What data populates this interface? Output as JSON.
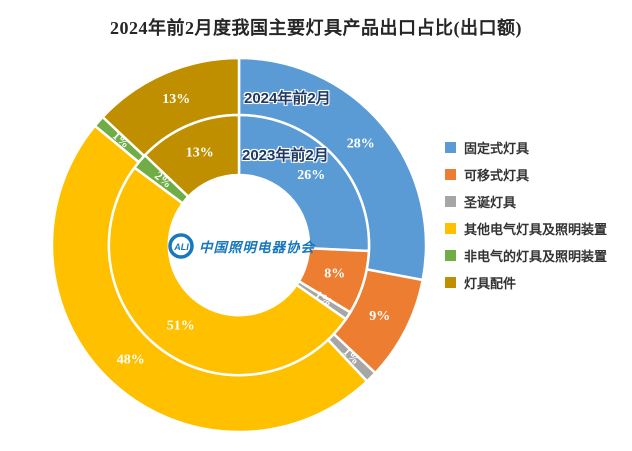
{
  "title": "2024年前2月度我国主要灯具产品出口占比(出口额)",
  "logo": {
    "acronym": "ALI",
    "name": "中国照明电器协会"
  },
  "chart_data": {
    "type": "pie",
    "subtype": "nested-donut",
    "title": "2024年前2月度我国主要灯具产品出口占比(出口额)",
    "categories": [
      "固定式灯具",
      "可移式灯具",
      "圣诞灯具",
      "其他电气灯具及照明装置",
      "非电气的灯具及照明装置",
      "灯具配件"
    ],
    "colors": [
      "#5B9BD5",
      "#ED7D31",
      "#A6A6A6",
      "#FFC000",
      "#70AD47",
      "#BF8F00"
    ],
    "series": [
      {
        "name": "2024年前2月",
        "ring": "outer",
        "values": [
          28,
          9,
          1,
          48,
          1,
          13
        ]
      },
      {
        "name": "2023年前2月",
        "ring": "inner",
        "values": [
          26,
          8,
          1,
          51,
          2,
          13
        ]
      }
    ],
    "value_suffix": "%",
    "label_color": "#FFFFFF",
    "legend_position": "right",
    "start_angle": 0,
    "direction": "clockwise"
  }
}
